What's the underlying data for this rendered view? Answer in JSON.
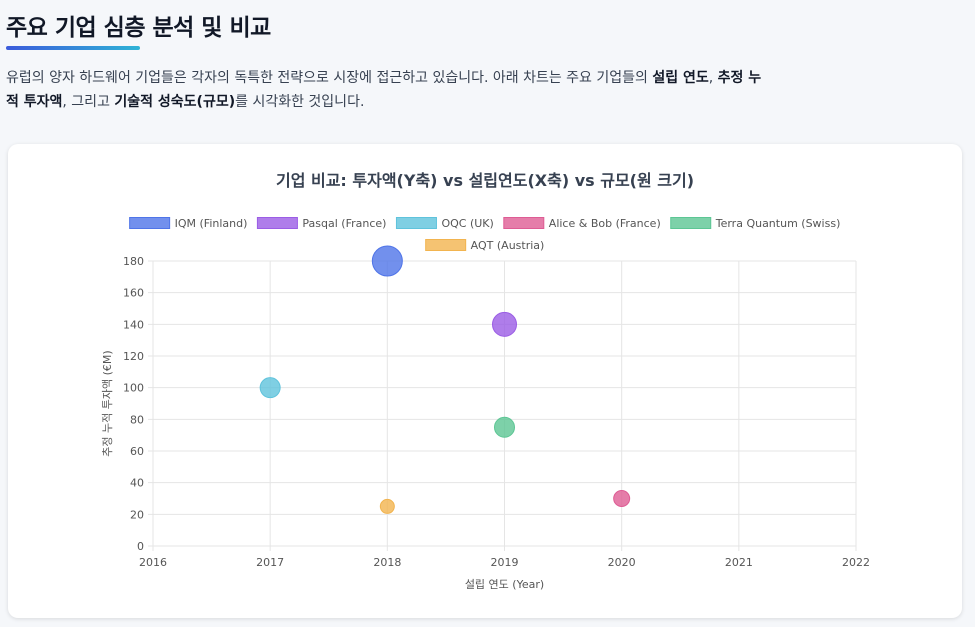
{
  "page": {
    "title": "주요 기업 심층 분석 및 비교",
    "intro": [
      {
        "text": "유럽의 양자 하드웨어 기업들은 각자의 독특한 전략으로 시장에 접근하고 있습니다. 아래 차트는 주요 기업들의 ",
        "bold": false
      },
      {
        "text": "설립 연도",
        "bold": true
      },
      {
        "text": ", ",
        "bold": false
      },
      {
        "text": "추정 누적 투자액",
        "bold": true
      },
      {
        "text": ", 그리고 ",
        "bold": false
      },
      {
        "text": "기술적 성숙도(규모)",
        "bold": true
      },
      {
        "text": "를 시각화한 것입니다.",
        "bold": false
      }
    ]
  },
  "chart_data": {
    "type": "scatter",
    "title": "기업 비교: 투자액(Y축) vs 설립연도(X축) vs 규모(원 크기)",
    "xlabel": "설립 연도 (Year)",
    "ylabel": "추정 누적 투자액 (€M)",
    "xlim": [
      2016,
      2022
    ],
    "ylim": [
      0,
      180
    ],
    "x_ticks": [
      2016,
      2017,
      2018,
      2019,
      2020,
      2021,
      2022
    ],
    "y_ticks": [
      0,
      20,
      40,
      60,
      80,
      100,
      120,
      140,
      160,
      180
    ],
    "grid": true,
    "legend_position": "top",
    "series": [
      {
        "name": "IQM (Finland)",
        "color": "#4f74e8",
        "x": 2018,
        "y": 180,
        "size": 15
      },
      {
        "name": "Pasqal (France)",
        "color": "#9b5de5",
        "x": 2019,
        "y": 140,
        "size": 12
      },
      {
        "name": "OQC (UK)",
        "color": "#5fc3dc",
        "x": 2017,
        "y": 100,
        "size": 10
      },
      {
        "name": "Alice & Bob (France)",
        "color": "#de5c94",
        "x": 2020,
        "y": 30,
        "size": 8
      },
      {
        "name": "Terra Quantum (Swiss)",
        "color": "#5cc694",
        "x": 2019,
        "y": 75,
        "size": 10
      },
      {
        "name": "AQT (Austria)",
        "color": "#f2b44f",
        "x": 2018,
        "y": 25,
        "size": 7
      }
    ]
  }
}
